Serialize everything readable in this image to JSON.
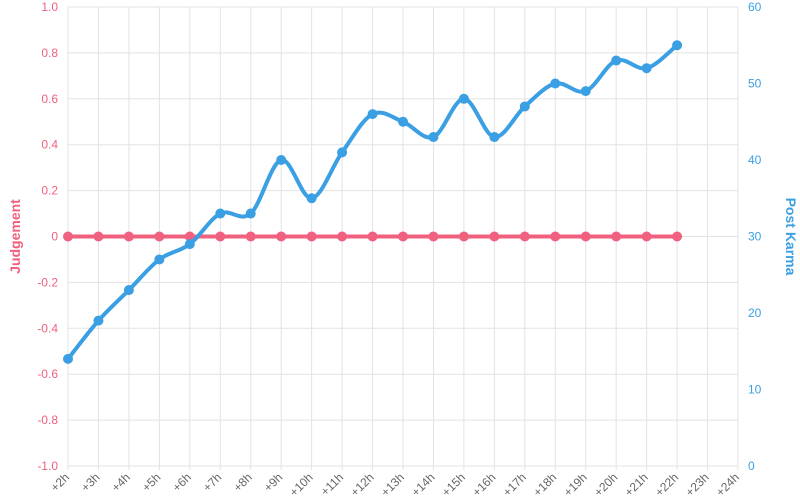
{
  "chart_data": {
    "type": "line",
    "categories": [
      "+2h",
      "+3h",
      "+4h",
      "+5h",
      "+6h",
      "+7h",
      "+8h",
      "+9h",
      "+10h",
      "+11h",
      "+12h",
      "+13h",
      "+14h",
      "+15h",
      "+16h",
      "+17h",
      "+18h",
      "+19h",
      "+20h",
      "+21h",
      "+22h",
      "+23h",
      "+24h"
    ],
    "series": [
      {
        "name": "Judgement",
        "axis": "left",
        "color": "#f0617f",
        "values": [
          0,
          0,
          0,
          0,
          0,
          0,
          0,
          0,
          0,
          0,
          0,
          0,
          0,
          0,
          0,
          0,
          0,
          0,
          0,
          0,
          0,
          null,
          null
        ]
      },
      {
        "name": "Post Karma",
        "axis": "right",
        "color": "#3b9fe3",
        "values": [
          14,
          19,
          23,
          27,
          29,
          33,
          33,
          40,
          35,
          41,
          46,
          45,
          43,
          48,
          43,
          47,
          50,
          49,
          53,
          52,
          55,
          null,
          null
        ]
      }
    ],
    "y_left": {
      "label": "Judgement",
      "min": -1.0,
      "max": 1.0,
      "ticks": [
        "1.0",
        "0.8",
        "0.6",
        "0.4",
        "0.2",
        "0",
        "-0.2",
        "-0.4",
        "-0.6",
        "-0.8",
        "-1.0"
      ],
      "color": "#f0617f"
    },
    "y_right": {
      "label": "Post Karma",
      "min": 0,
      "max": 60,
      "ticks": [
        "60",
        "50",
        "40",
        "30",
        "20",
        "10",
        "0"
      ],
      "color": "#3b9fe3"
    },
    "x_tick_color": "#666666",
    "grid": true,
    "legend": "none"
  }
}
